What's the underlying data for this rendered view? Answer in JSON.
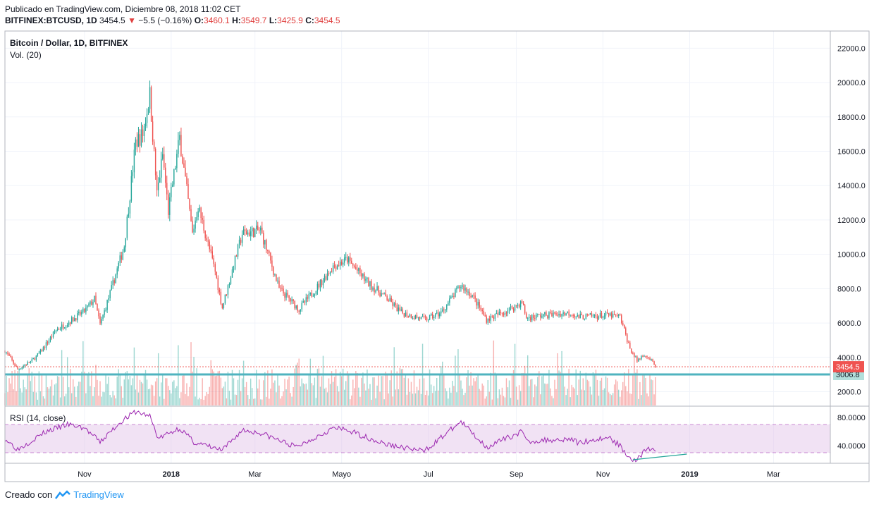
{
  "header": {
    "published": "Publicado en TradingView.com, Diciembre 08, 2018 11:02 CET",
    "symbol": "BITFINEX:BTCUSD, 1D",
    "last": "3454.5",
    "change": "−5.5 (−0.16%)",
    "o_label": "O:",
    "o_value": "3460.1",
    "h_label": "H:",
    "h_value": "3549.7",
    "l_label": "L:",
    "l_value": "3425.9",
    "c_label": "C:",
    "c_value": "3454.5"
  },
  "footer": {
    "created_with": "Creado con",
    "brand": "TradingView"
  },
  "colors": {
    "up": "#26a69a",
    "down": "#ef5350",
    "rsi": "#9c27b0",
    "band": "#e1bee7",
    "hline": "#4fb3bf"
  },
  "chart_data": [
    {
      "type": "candlestick",
      "title": "Bitcoin / Dollar, 1D, BITFINEX",
      "indicator_label": "Vol. (20)",
      "ylim": [
        1200,
        23000
      ],
      "y_ticks": [
        "22000.0",
        "20000.0",
        "18000.0",
        "16000.0",
        "14000.0",
        "12000.0",
        "10000.0",
        "8000.0",
        "6000.0",
        "4000.0",
        "2000.0"
      ],
      "y_tick_values": [
        22000,
        20000,
        18000,
        16000,
        14000,
        12000,
        10000,
        8000,
        6000,
        4000,
        2000
      ],
      "x_ticks": [
        "Nov",
        "2018",
        "Mar",
        "Mayo",
        "Jul",
        "Sep",
        "Nov",
        "2019",
        "Mar"
      ],
      "x_tick_dates": [
        "2017-11-01",
        "2018-01-01",
        "2018-03-01",
        "2018-05-01",
        "2018-07-01",
        "2018-09-01",
        "2018-11-01",
        "2019-01-01",
        "2019-03-01"
      ],
      "x_range": [
        "2017-09-06",
        "2019-04-10"
      ],
      "last_price": 3454.5,
      "last_price_label": "3454.5",
      "horizontal_line": 3006.8,
      "horizontal_line_label": "3006.8",
      "close_anchors": [
        [
          "2017-09-06",
          4400
        ],
        [
          "2017-09-15",
          3300
        ],
        [
          "2017-09-25",
          3800
        ],
        [
          "2017-10-01",
          4300
        ],
        [
          "2017-10-12",
          5600
        ],
        [
          "2017-10-20",
          6000
        ],
        [
          "2017-11-01",
          6700
        ],
        [
          "2017-11-08",
          7400
        ],
        [
          "2017-11-12",
          5900
        ],
        [
          "2017-11-20",
          8000
        ],
        [
          "2017-11-29",
          10500
        ],
        [
          "2017-12-07",
          16500
        ],
        [
          "2017-12-12",
          17000
        ],
        [
          "2017-12-17",
          19300
        ],
        [
          "2017-12-22",
          13500
        ],
        [
          "2017-12-26",
          15800
        ],
        [
          "2017-12-30",
          12500
        ],
        [
          "2018-01-07",
          16800
        ],
        [
          "2018-01-16",
          11200
        ],
        [
          "2018-01-20",
          12800
        ],
        [
          "2018-02-01",
          9000
        ],
        [
          "2018-02-06",
          6900
        ],
        [
          "2018-02-20",
          11200
        ],
        [
          "2018-03-05",
          11400
        ],
        [
          "2018-03-18",
          8000
        ],
        [
          "2018-04-01",
          6800
        ],
        [
          "2018-04-12",
          7900
        ],
        [
          "2018-04-25",
          9300
        ],
        [
          "2018-05-05",
          9700
        ],
        [
          "2018-05-20",
          8300
        ],
        [
          "2018-06-01",
          7500
        ],
        [
          "2018-06-12",
          6600
        ],
        [
          "2018-06-29",
          6200
        ],
        [
          "2018-07-10",
          6600
        ],
        [
          "2018-07-24",
          8200
        ],
        [
          "2018-08-01",
          7600
        ],
        [
          "2018-08-11",
          6200
        ],
        [
          "2018-08-25",
          6700
        ],
        [
          "2018-09-05",
          7200
        ],
        [
          "2018-09-08",
          6300
        ],
        [
          "2018-09-20",
          6450
        ],
        [
          "2018-10-10",
          6600
        ],
        [
          "2018-10-14",
          6350
        ],
        [
          "2018-11-05",
          6450
        ],
        [
          "2018-11-13",
          6350
        ],
        [
          "2018-11-20",
          4500
        ],
        [
          "2018-11-25",
          3800
        ],
        [
          "2018-11-30",
          4200
        ],
        [
          "2018-12-04",
          3900
        ],
        [
          "2018-12-08",
          3454.5
        ]
      ]
    },
    {
      "type": "line",
      "title": "RSI (14, close)",
      "ylim": [
        15,
        95
      ],
      "y_ticks": [
        "80.0000",
        "40.0000"
      ],
      "y_tick_values": [
        80,
        40
      ],
      "band": [
        30,
        70
      ],
      "anchors": [
        [
          "2017-09-06",
          50
        ],
        [
          "2017-09-15",
          35
        ],
        [
          "2017-10-05",
          60
        ],
        [
          "2017-10-20",
          70
        ],
        [
          "2017-11-01",
          65
        ],
        [
          "2017-11-12",
          45
        ],
        [
          "2017-11-27",
          75
        ],
        [
          "2017-12-07",
          88
        ],
        [
          "2017-12-17",
          82
        ],
        [
          "2017-12-23",
          50
        ],
        [
          "2018-01-07",
          65
        ],
        [
          "2018-01-17",
          45
        ],
        [
          "2018-02-06",
          33
        ],
        [
          "2018-02-20",
          62
        ],
        [
          "2018-03-05",
          58
        ],
        [
          "2018-03-30",
          38
        ],
        [
          "2018-04-25",
          65
        ],
        [
          "2018-05-05",
          62
        ],
        [
          "2018-06-01",
          42
        ],
        [
          "2018-06-28",
          32
        ],
        [
          "2018-07-24",
          74
        ],
        [
          "2018-08-11",
          38
        ],
        [
          "2018-09-05",
          60
        ],
        [
          "2018-09-08",
          46
        ],
        [
          "2018-10-10",
          50
        ],
        [
          "2018-10-14",
          44
        ],
        [
          "2018-11-05",
          52
        ],
        [
          "2018-11-14",
          38
        ],
        [
          "2018-11-20",
          22
        ],
        [
          "2018-11-25",
          20
        ],
        [
          "2018-11-30",
          32
        ],
        [
          "2018-12-04",
          36
        ],
        [
          "2018-12-08",
          30
        ]
      ],
      "trendline": [
        [
          "2018-11-22",
          20
        ],
        [
          "2018-12-30",
          28
        ]
      ]
    }
  ]
}
